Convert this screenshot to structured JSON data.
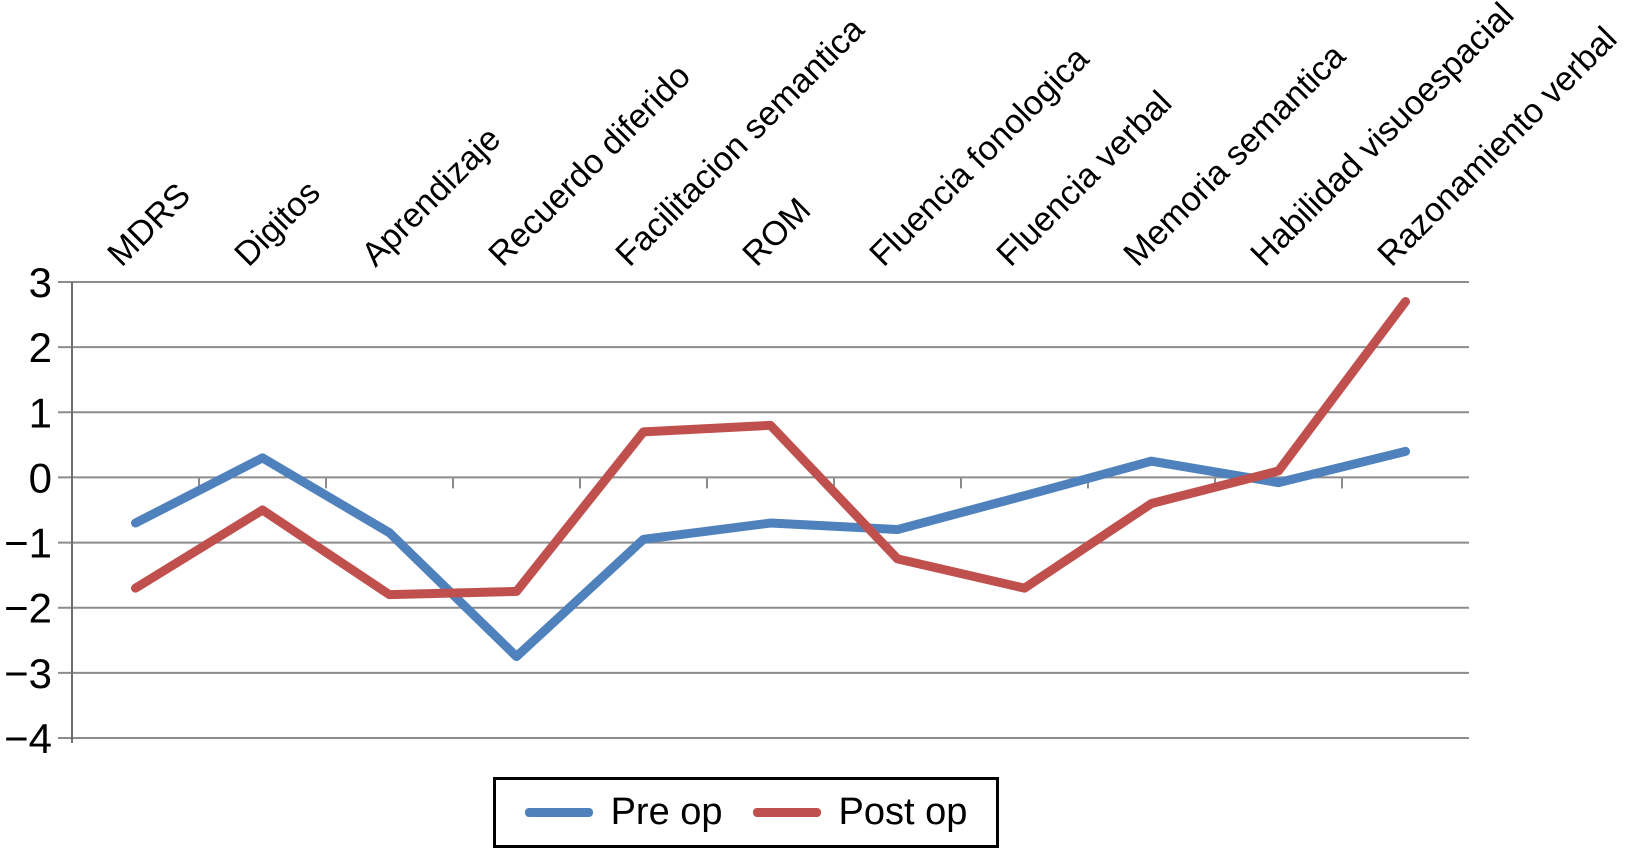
{
  "chart_data": {
    "type": "line",
    "title": "",
    "xlabel": "",
    "ylabel": "",
    "categories": [
      "MDRS",
      "Digitos",
      "Aprendizaje",
      "Recuerdo diferido",
      "Facilitacion semantica",
      "ROM",
      "Fluencia fonologica",
      "Fluencia verbal",
      "Memoria semantica",
      "Habilidad visuoespacial",
      "Razonamiento verbal"
    ],
    "series": [
      {
        "name": "Pre op",
        "color": "#4f81bd",
        "values": [
          -0.7,
          0.3,
          -0.85,
          -2.75,
          -0.95,
          -0.7,
          -0.8,
          -0.28,
          0.25,
          -0.08,
          0.4
        ]
      },
      {
        "name": "Post op",
        "color": "#c0504d",
        "values": [
          -1.7,
          -0.5,
          -1.8,
          -1.75,
          0.7,
          0.8,
          -1.25,
          -1.7,
          -0.4,
          0.1,
          2.7
        ]
      }
    ],
    "ylim": [
      -4,
      3
    ],
    "y_ticks": [
      {
        "value": 3,
        "label": "3"
      },
      {
        "value": 2,
        "label": "2"
      },
      {
        "value": 1,
        "label": "1"
      },
      {
        "value": 0,
        "label": "0"
      },
      {
        "value": -1,
        "label": "−1"
      },
      {
        "value": -2,
        "label": "−2"
      },
      {
        "value": -3,
        "label": "−3"
      },
      {
        "value": -4,
        "label": "−4"
      }
    ],
    "grid": true,
    "legend_position": "bottom",
    "x_label_rotation_deg": 45
  },
  "colors": {
    "gridline": "#8c8c8c",
    "axis": "#6e6e6e",
    "text": "#000000",
    "background": "#ffffff"
  }
}
